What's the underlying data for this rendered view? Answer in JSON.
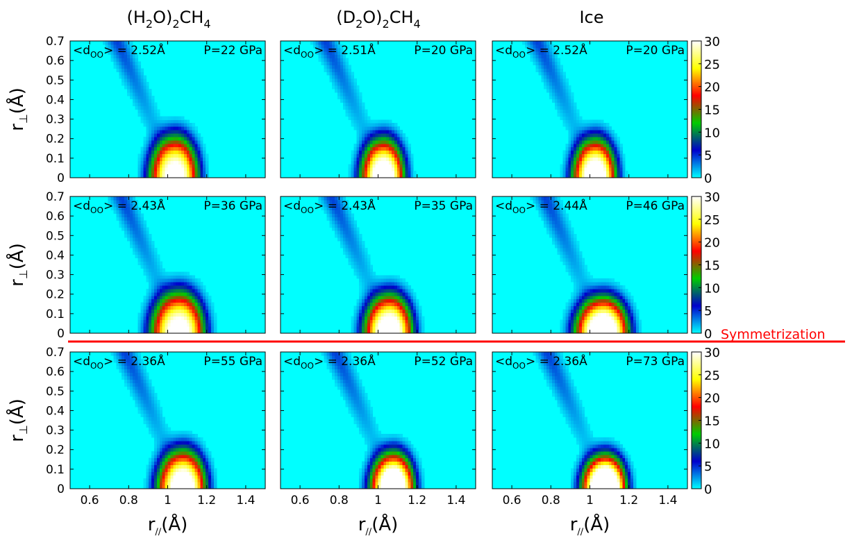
{
  "columns": [
    {
      "base": "(H",
      "sub1": "2",
      "mid": "O)",
      "sub2": "2",
      "tail": "CH",
      "sub3": "4"
    },
    {
      "base": "(D",
      "sub1": "2",
      "mid": "O)",
      "sub2": "2",
      "tail": "CH",
      "sub3": "4"
    },
    {
      "base": "Ice",
      "sub1": "",
      "mid": "",
      "sub2": "",
      "tail": "",
      "sub3": ""
    }
  ],
  "axis": {
    "x_label_main": "r",
    "x_label_sub": "∕∕",
    "x_label_unit": "(Å)",
    "y_label_main": "r",
    "y_label_sub": "⊥",
    "y_label_unit": "(Å)"
  },
  "annotation": {
    "dOO_prefix": "<d",
    "dOO_sub": "OO",
    "dOO_suffix": "> = "
  },
  "separator_label": "Symmetrization",
  "colors": {
    "background_level": "#00ffff",
    "separator": "#ff0000",
    "colormap": [
      "#00ffff",
      "#0000cc",
      "#00cc00",
      "#ff0000",
      "#ffff00",
      "#ffffff"
    ]
  },
  "chart_data": {
    "type": "heatmap",
    "grid": [
      3,
      3
    ],
    "xlim": [
      0.5,
      1.5
    ],
    "ylim": [
      0,
      0.7
    ],
    "xticks": [
      "0.6",
      "0.8",
      "1",
      "1.2",
      "1.4"
    ],
    "xtick_values": [
      0.6,
      0.8,
      1.0,
      1.2,
      1.4
    ],
    "yticks": [
      "0",
      "0.1",
      "0.2",
      "0.3",
      "0.4",
      "0.5",
      "0.6",
      "0.7"
    ],
    "ytick_values": [
      0,
      0.1,
      0.2,
      0.3,
      0.4,
      0.5,
      0.6,
      0.7
    ],
    "colorbar": {
      "ticks": [
        "0",
        "5",
        "10",
        "15",
        "20",
        "25",
        "30"
      ],
      "tick_values": [
        0,
        5,
        10,
        15,
        20,
        25,
        30
      ],
      "range": [
        0,
        30
      ]
    },
    "panels": [
      {
        "row": 0,
        "col": 0,
        "d_oo": "2.52Å",
        "pressure": "P=22 GPa",
        "center_x": 1.04,
        "width_x": 0.1,
        "height_y": 0.16,
        "peak": 32
      },
      {
        "row": 0,
        "col": 1,
        "d_oo": "2.51Å",
        "pressure": "P=20 GPa",
        "center_x": 1.03,
        "width_x": 0.09,
        "height_y": 0.15,
        "peak": 34
      },
      {
        "row": 0,
        "col": 2,
        "d_oo": "2.52Å",
        "pressure": "P=20 GPa",
        "center_x": 1.03,
        "width_x": 0.09,
        "height_y": 0.15,
        "peak": 34
      },
      {
        "row": 1,
        "col": 0,
        "d_oo": "2.43Å",
        "pressure": "P=36 GPa",
        "center_x": 1.06,
        "width_x": 0.11,
        "height_y": 0.16,
        "peak": 32
      },
      {
        "row": 1,
        "col": 1,
        "d_oo": "2.43Å",
        "pressure": "P=35 GPa",
        "center_x": 1.06,
        "width_x": 0.1,
        "height_y": 0.15,
        "peak": 34
      },
      {
        "row": 1,
        "col": 2,
        "d_oo": "2.44Å",
        "pressure": "P=46 GPa",
        "center_x": 1.07,
        "width_x": 0.11,
        "height_y": 0.14,
        "peak": 36
      },
      {
        "row": 2,
        "col": 0,
        "d_oo": "2.36Å",
        "pressure": "P=55 GPa",
        "center_x": 1.08,
        "width_x": 0.1,
        "height_y": 0.15,
        "peak": 34
      },
      {
        "row": 2,
        "col": 1,
        "d_oo": "2.36Å",
        "pressure": "P=52 GPa",
        "center_x": 1.08,
        "width_x": 0.09,
        "height_y": 0.14,
        "peak": 38
      },
      {
        "row": 2,
        "col": 2,
        "d_oo": "2.36Å",
        "pressure": "P=73 GPa",
        "center_x": 1.08,
        "width_x": 0.09,
        "height_y": 0.13,
        "peak": 42
      }
    ]
  }
}
